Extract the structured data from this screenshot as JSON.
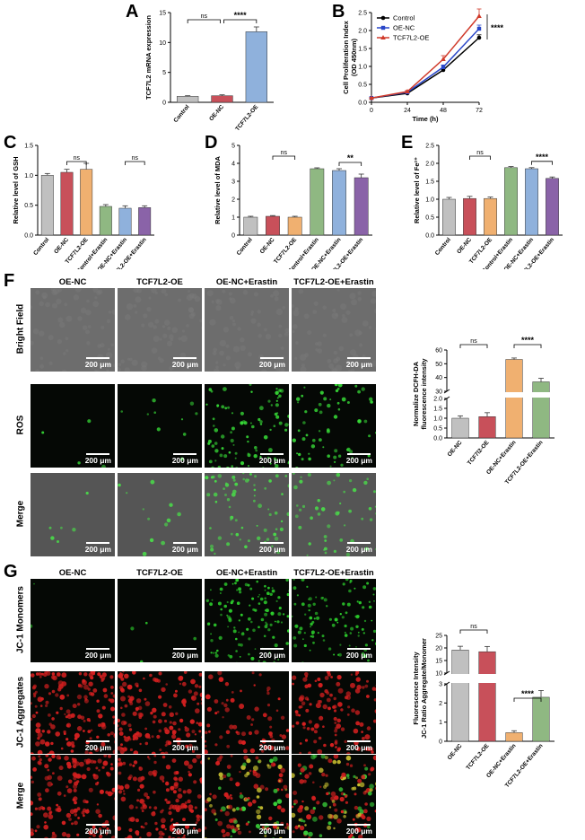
{
  "panel_letters": [
    "A",
    "B",
    "C",
    "D",
    "E",
    "F",
    "G"
  ],
  "colors": {
    "control": "#c0c0c0",
    "oe_nc": "#c8505a",
    "tcf7l2_oe": "#f0b070",
    "tcf7l2_oe_blue": "#8fb1dc",
    "control_erastin": "#8fb882",
    "oe_nc_erastin": "#8fb1dc",
    "tcf7l2_oe_erastin": "#8a63a8",
    "line_control": "#000000",
    "line_oe_nc": "#2946c8",
    "line_tcf7l2_oe": "#d03a2a"
  },
  "chart_data": [
    {
      "id": "A",
      "type": "bar",
      "ylabel": "TCF7L2 mRNA expression",
      "categories": [
        "Control",
        "OE-NC",
        "TCF7L2-OE"
      ],
      "values": [
        1.0,
        1.1,
        11.8
      ],
      "errors": [
        0.1,
        0.15,
        0.8
      ],
      "ylim": [
        0,
        15
      ],
      "yticks": [
        "0",
        "5",
        "10",
        "15"
      ],
      "sig": [
        {
          "from": 0,
          "to": 1,
          "label": "ns"
        },
        {
          "from": 1,
          "to": 2,
          "label": "****"
        }
      ]
    },
    {
      "id": "B",
      "type": "line",
      "xlabel": "Time (h)",
      "ylabel": [
        "Cell Proliferation Index",
        "(OD 450nm)"
      ],
      "x": [
        0,
        24,
        48,
        72
      ],
      "xticks": [
        "0",
        "24",
        "48",
        "72"
      ],
      "ylim": [
        0,
        2.5
      ],
      "yticks": [
        "0.0",
        "0.5",
        "1.0",
        "1.5",
        "2.0",
        "2.5"
      ],
      "series": [
        {
          "name": "Control",
          "values": [
            0.12,
            0.25,
            0.9,
            1.8
          ],
          "errors": [
            0.02,
            0.03,
            0.05,
            0.08
          ]
        },
        {
          "name": "OE-NC",
          "values": [
            0.12,
            0.28,
            0.98,
            2.05
          ],
          "errors": [
            0.02,
            0.03,
            0.06,
            0.1
          ]
        },
        {
          "name": "TCF7L2-OE",
          "values": [
            0.12,
            0.3,
            1.2,
            2.4
          ],
          "errors": [
            0.02,
            0.03,
            0.1,
            0.2
          ]
        }
      ],
      "sig_label": "****"
    },
    {
      "id": "C",
      "type": "bar",
      "ylabel": "Relative level of GSH",
      "categories": [
        "Control",
        "OE-NC",
        "TCF7L2-OE",
        "Control+Erastin",
        "OE-NC+Erastin",
        "TCF7L2-OE+Erastin"
      ],
      "values": [
        1.0,
        1.05,
        1.1,
        0.48,
        0.45,
        0.46
      ],
      "errors": [
        0.03,
        0.05,
        0.1,
        0.03,
        0.04,
        0.03
      ],
      "ylim": [
        0,
        1.5
      ],
      "yticks": [
        "0.0",
        "0.5",
        "1.0",
        "1.5"
      ],
      "sig": [
        {
          "from": 1,
          "to": 2,
          "label": "ns"
        },
        {
          "from": 4,
          "to": 5,
          "label": "ns"
        }
      ]
    },
    {
      "id": "D",
      "type": "bar",
      "ylabel": "Relative level of MDA",
      "categories": [
        "Control",
        "OE-NC",
        "TCF7L2-OE",
        "Control+Erastin",
        "OE-NC+Erastin",
        "TCF7L2-OE+Erastin"
      ],
      "values": [
        1.0,
        1.05,
        1.0,
        3.7,
        3.6,
        3.2
      ],
      "errors": [
        0.05,
        0.04,
        0.05,
        0.05,
        0.1,
        0.2
      ],
      "ylim": [
        0,
        5
      ],
      "yticks": [
        "0",
        "1",
        "2",
        "3",
        "4",
        "5"
      ],
      "sig": [
        {
          "from": 1,
          "to": 2,
          "label": "ns"
        },
        {
          "from": 4,
          "to": 5,
          "label": "**"
        }
      ]
    },
    {
      "id": "E",
      "type": "bar",
      "ylabel": "Relative level of Fe²⁺",
      "categories": [
        "Control",
        "OE-NC",
        "TCF7L2-OE",
        "Control+Erastin",
        "OE-NC+Erastin",
        "TCF7L2-OE+Erastin"
      ],
      "values": [
        1.0,
        1.02,
        1.02,
        1.88,
        1.85,
        1.58
      ],
      "errors": [
        0.05,
        0.06,
        0.04,
        0.03,
        0.03,
        0.04
      ],
      "ylim": [
        0,
        2.5
      ],
      "yticks": [
        "0.0",
        "0.5",
        "1.0",
        "1.5",
        "2.0",
        "2.5"
      ],
      "sig": [
        {
          "from": 1,
          "to": 2,
          "label": "ns"
        },
        {
          "from": 4,
          "to": 5,
          "label": "****"
        }
      ]
    },
    {
      "id": "F",
      "type": "bar",
      "ylabel": [
        "Normalize DCFH-DA",
        "fluorescence intensity"
      ],
      "categories": [
        "OE-NC",
        "TCF7l2-OE",
        "OE-NC+Erastin",
        "TCF7L2-OE+Erastin"
      ],
      "values": [
        1.0,
        1.08,
        52,
        33
      ],
      "errors": [
        0.12,
        0.2,
        1.2,
        3
      ],
      "yticks_low": [
        "0.0",
        "0.5",
        "1.0",
        "1.5",
        "2.0"
      ],
      "yticks_high": [
        "30",
        "40",
        "50",
        "60"
      ],
      "broken_axis": true,
      "sig": [
        {
          "from": 0,
          "to": 1,
          "label": "ns"
        },
        {
          "from": 2,
          "to": 3,
          "label": "****"
        }
      ]
    },
    {
      "id": "G",
      "type": "bar",
      "ylabel": [
        "Fluorescence Intensity",
        "JC-1 Ratio Aggregate/Monomer"
      ],
      "categories": [
        "OE-NC",
        "TCF7L2-OE",
        "OE-NC+Erastin",
        "TCF7L2-OE+Erastin"
      ],
      "values": [
        18.0,
        17.2,
        0.45,
        2.3
      ],
      "errors": [
        1.8,
        2.5,
        0.1,
        0.35
      ],
      "yticks_low": [
        "0",
        "1",
        "2",
        "3"
      ],
      "yticks_high": [
        "10",
        "15",
        "20",
        "25"
      ],
      "broken_axis": true,
      "sig": [
        {
          "from": 0,
          "to": 1,
          "label": "ns"
        },
        {
          "from": 2,
          "to": 3,
          "label": "****"
        }
      ]
    }
  ],
  "micrographs": {
    "F": {
      "columns": [
        "OE-NC",
        "TCF7L2-OE",
        "OE-NC+Erastin",
        "TCF7L2-OE+Erastin"
      ],
      "rows": [
        "Bright Field",
        "ROS",
        "Merge"
      ],
      "scale_bar": "200 μm"
    },
    "G": {
      "columns": [
        "OE-NC",
        "TCF7L2-OE",
        "OE-NC+Erastin",
        "TCF7L2-OE+Erastin"
      ],
      "rows": [
        "JC-1 Monomers",
        "JC-1 Aggregates",
        "Merge"
      ],
      "scale_bar": "200 μm"
    }
  }
}
